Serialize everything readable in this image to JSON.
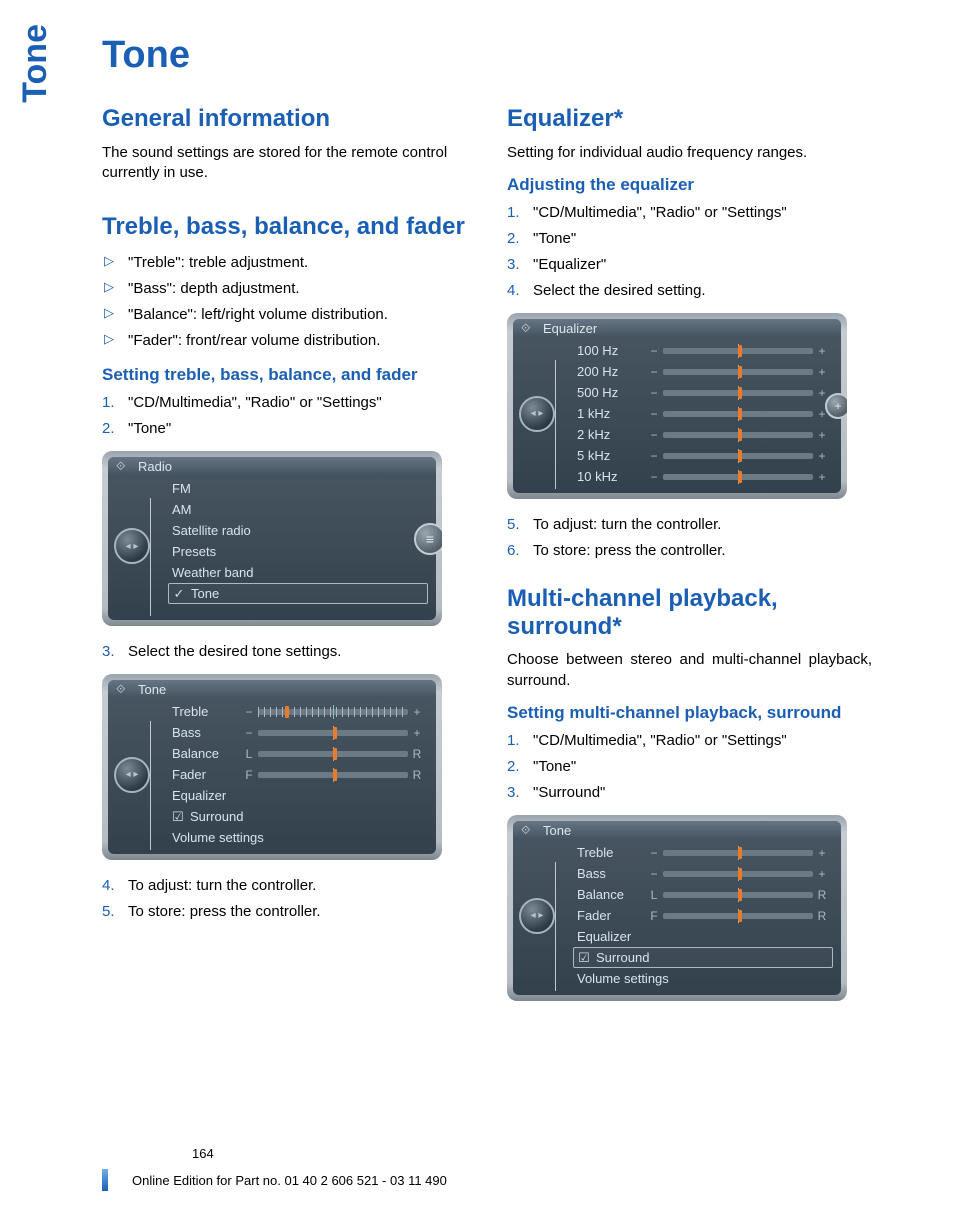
{
  "side_tab": "Tone",
  "title": "Tone",
  "page_number": "164",
  "footer": "Online Edition for Part no. 01 40 2 606 521 - 03 11 490",
  "colors": {
    "accent": "#1a5fb4",
    "text": "#000000",
    "shot_bg_top": "#4a5763",
    "shot_bg_bottom": "#33414d",
    "shot_frame": "#b5bcc3",
    "slider_thumb": "#e97b2a"
  },
  "left": {
    "general": {
      "heading": "General information",
      "body": "The sound settings are stored for the remote control currently in use."
    },
    "tbbf": {
      "heading": "Treble, bass, balance, and fader",
      "items": [
        "\"Treble\": treble adjustment.",
        "\"Bass\": depth adjustment.",
        "\"Balance\": left/right volume distribution.",
        "\"Fader\": front/rear volume distribution."
      ],
      "sub_heading": "Setting treble, bass, balance, and fader",
      "steps_a": [
        "\"CD/Multimedia\", \"Radio\" or \"Settings\"",
        "\"Tone\""
      ],
      "shot1": {
        "header": "Radio",
        "items": [
          "FM",
          "AM",
          "Satellite radio",
          "Presets",
          "Weather band",
          "Tone"
        ],
        "selected": "Tone"
      },
      "steps_b": [
        "Select the desired tone settings."
      ],
      "shot2": {
        "header": "Tone",
        "rows": [
          {
            "label": "Treble",
            "left": "−",
            "right": "+",
            "thumb": 0.18,
            "ticks": true,
            "hl": true
          },
          {
            "label": "Bass",
            "left": "−",
            "right": "+",
            "thumb": 0.5
          },
          {
            "label": "Balance",
            "left": "L",
            "right": "R",
            "thumb": 0.5
          },
          {
            "label": "Fader",
            "left": "F",
            "right": "R",
            "thumb": 0.5
          }
        ],
        "extras": [
          "Equalizer",
          "Surround",
          "Volume settings"
        ],
        "surround_checked": true
      },
      "steps_c": [
        "To adjust: turn the controller.",
        "To store: press the controller."
      ]
    }
  },
  "right": {
    "eq": {
      "heading": "Equalizer*",
      "body": "Setting for individual audio frequency ranges.",
      "sub_heading": "Adjusting the equalizer",
      "steps_a": [
        "\"CD/Multimedia\", \"Radio\" or \"Settings\"",
        "\"Tone\"",
        "\"Equalizer\"",
        "Select the desired setting."
      ],
      "shot": {
        "header": "Equalizer",
        "rows": [
          {
            "label": "100 Hz",
            "thumb": 0.5,
            "hl": true
          },
          {
            "label": "200 Hz",
            "thumb": 0.5
          },
          {
            "label": "500 Hz",
            "thumb": 0.5
          },
          {
            "label": "1 kHz",
            "thumb": 0.5
          },
          {
            "label": "2 kHz",
            "thumb": 0.5
          },
          {
            "label": "5 kHz",
            "thumb": 0.5
          },
          {
            "label": "10 kHz",
            "thumb": 0.5
          }
        ]
      },
      "steps_b": [
        "To adjust: turn the controller.",
        "To store: press the controller."
      ]
    },
    "multi": {
      "heading": "Multi-channel playback, surround*",
      "body": "Choose between stereo and multi-channel playback, surround.",
      "sub_heading": "Setting multi-channel playback, surround",
      "steps": [
        "\"CD/Multimedia\", \"Radio\" or \"Settings\"",
        "\"Tone\"",
        "\"Surround\""
      ],
      "shot": {
        "header": "Tone",
        "rows": [
          {
            "label": "Treble",
            "left": "−",
            "right": "+",
            "thumb": 0.5
          },
          {
            "label": "Bass",
            "left": "−",
            "right": "+",
            "thumb": 0.5
          },
          {
            "label": "Balance",
            "left": "L",
            "right": "R",
            "thumb": 0.5
          },
          {
            "label": "Fader",
            "left": "F",
            "right": "R",
            "thumb": 0.5
          }
        ],
        "extras": [
          "Equalizer",
          "Surround",
          "Volume settings"
        ],
        "surround_checked": true,
        "surround_hl": true
      }
    }
  }
}
